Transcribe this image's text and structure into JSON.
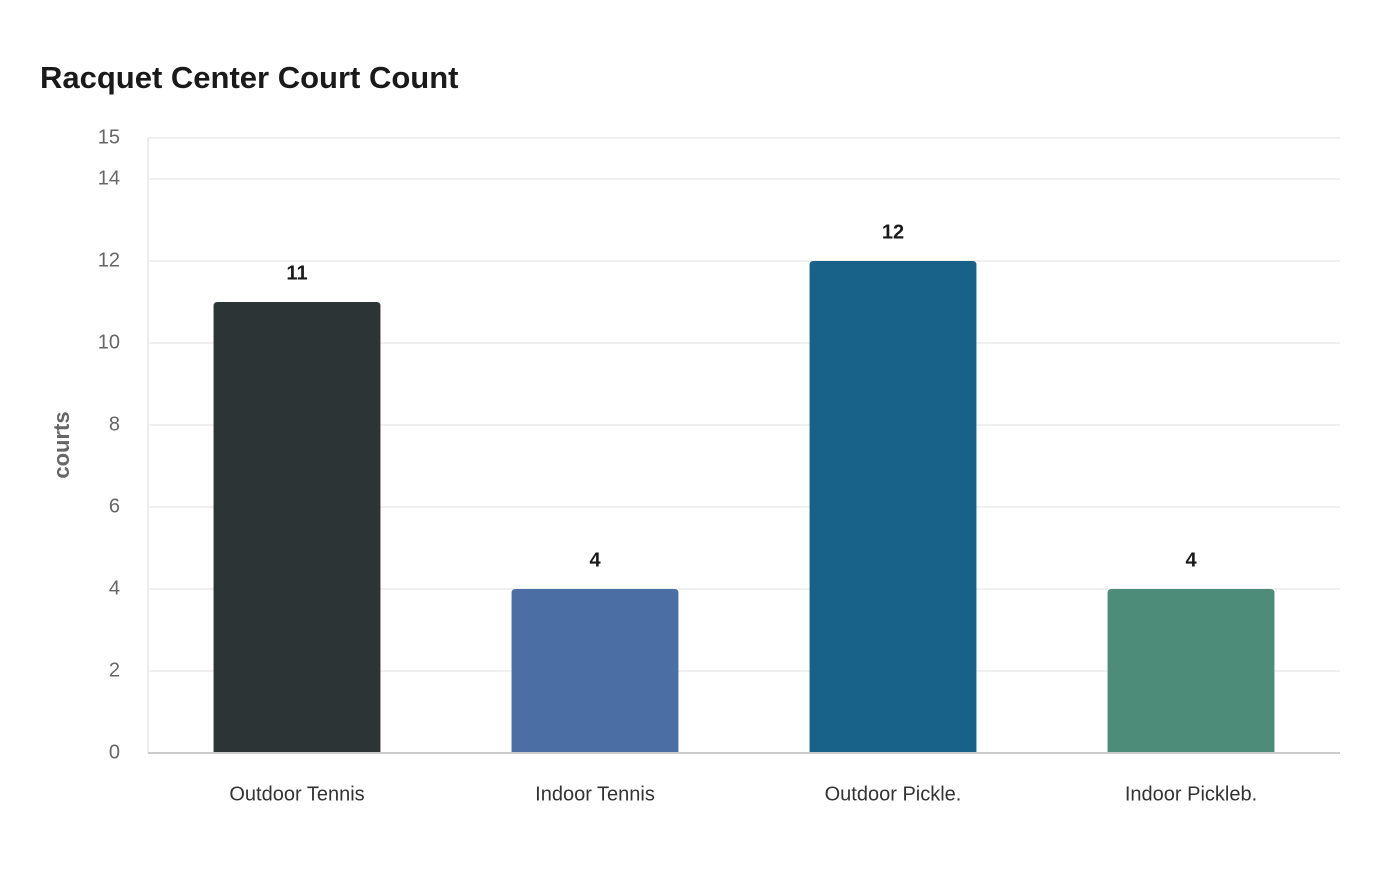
{
  "chart_data": {
    "type": "bar",
    "title": "Racquet Center Court Count",
    "y_label": "courts",
    "categories": [
      "Outdoor Tennis",
      "Indoor Tennis",
      "Outdoor Pickle.",
      "Indoor Pickleb."
    ],
    "values": [
      11,
      4,
      12,
      4
    ],
    "colors": [
      "#2d3436",
      "#4a6fa5",
      "#186289",
      "#4e8c7a"
    ],
    "ylim": [
      0,
      15
    ],
    "yticks": [
      0,
      2,
      4,
      6,
      8,
      10,
      12,
      14,
      15
    ],
    "grid": true
  }
}
